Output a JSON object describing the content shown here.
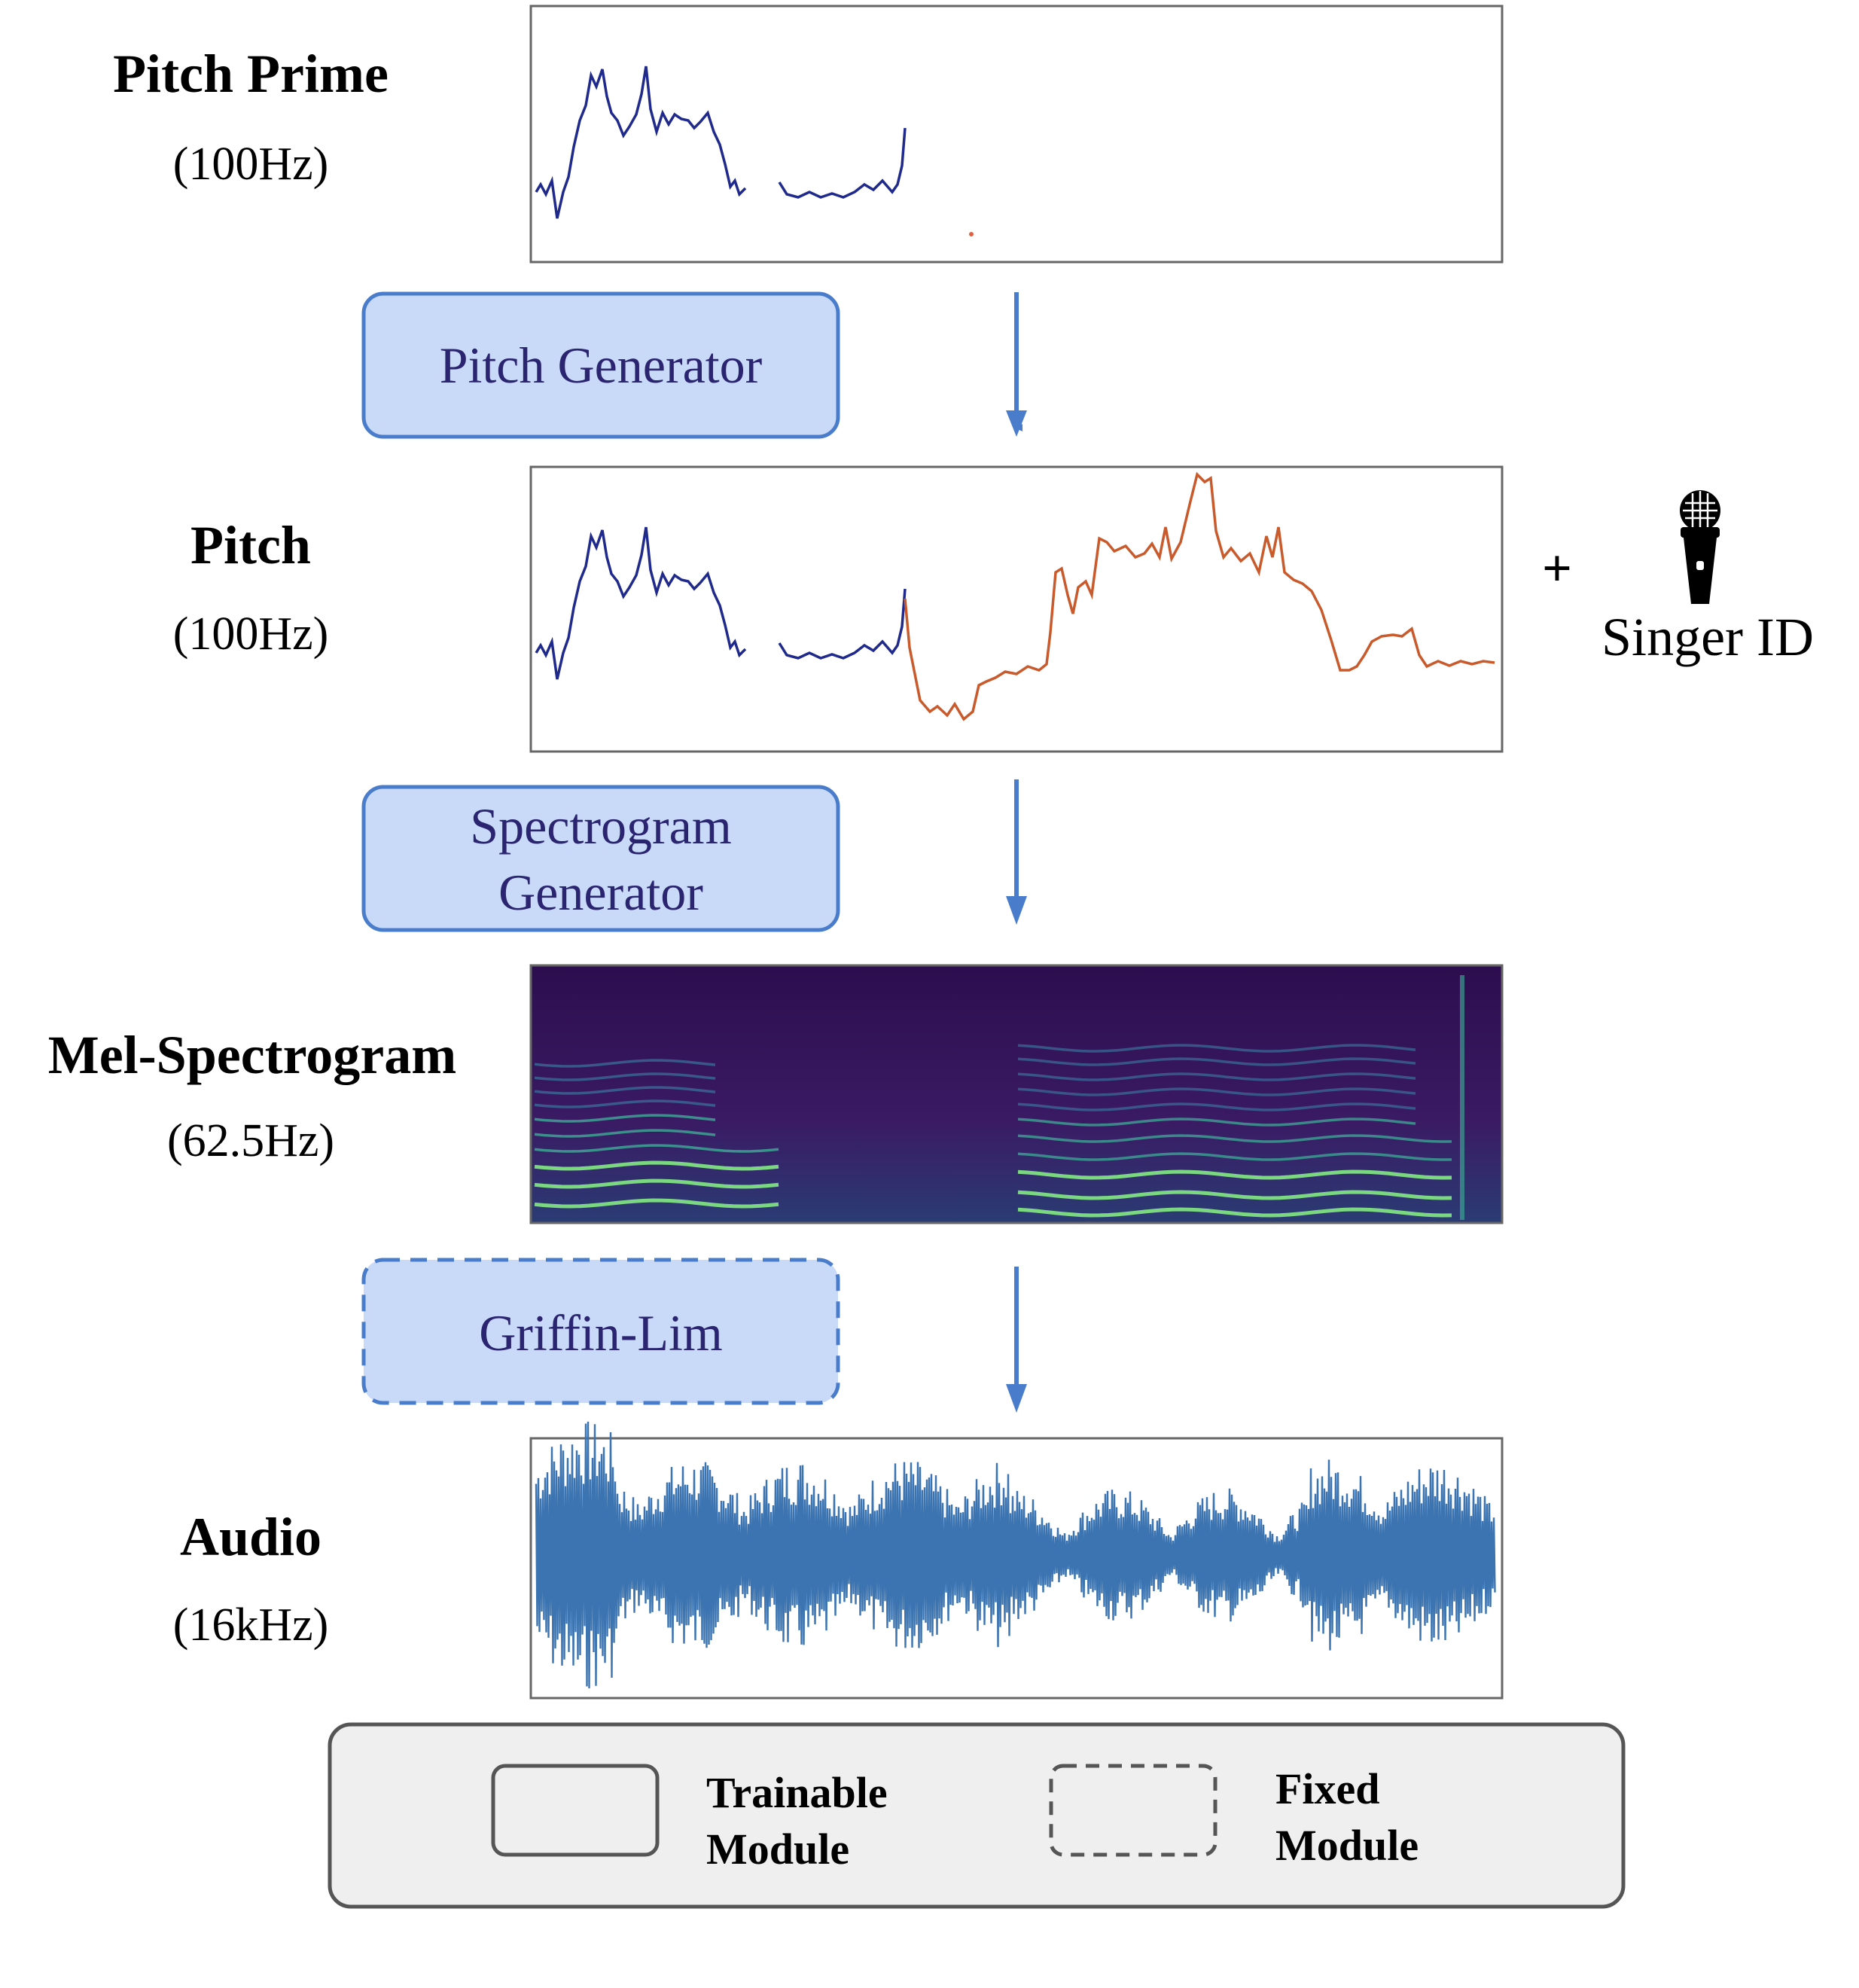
{
  "stages": [
    {
      "id": "pitch-prime",
      "title": "Pitch Prime",
      "rate": "(100Hz)"
    },
    {
      "id": "pitch",
      "title": "Pitch",
      "rate": "(100Hz)"
    },
    {
      "id": "mel-spectrogram",
      "title": "Mel-Spectrogram",
      "rate": "(62.5Hz)"
    },
    {
      "id": "audio",
      "title": "Audio",
      "rate": "(16kHz)"
    }
  ],
  "modules": [
    {
      "id": "pitch-generator",
      "lines": [
        "Pitch Generator"
      ],
      "type": "trainable"
    },
    {
      "id": "spectrogram-generator",
      "lines": [
        "Spectrogram",
        "Generator"
      ],
      "type": "trainable"
    },
    {
      "id": "griffin-lim",
      "lines": [
        "Griffin-Lim"
      ],
      "type": "fixed"
    }
  ],
  "conditioning": {
    "plus": "+",
    "label": "Singer ID",
    "icon": "microphone-icon"
  },
  "legend": {
    "trainable": {
      "line1": "Trainable",
      "line2": "Module"
    },
    "fixed": {
      "line1": "Fixed",
      "line2": "Module"
    }
  },
  "colors": {
    "module_fill": "#c9daf8",
    "module_stroke": "#4a7ccc",
    "module_text": "#2b2470",
    "arrow": "#4a7ccc",
    "pitch_prime_line": "#1f2a8c",
    "pitch_generated_line": "#c95a2c",
    "audio_wave": "#3b74b0",
    "spectrogram_bg": "#3b0a5a",
    "spectrogram_harmonic": "#6ee07a",
    "legend_bg": "#efefef",
    "legend_stroke": "#555555"
  }
}
